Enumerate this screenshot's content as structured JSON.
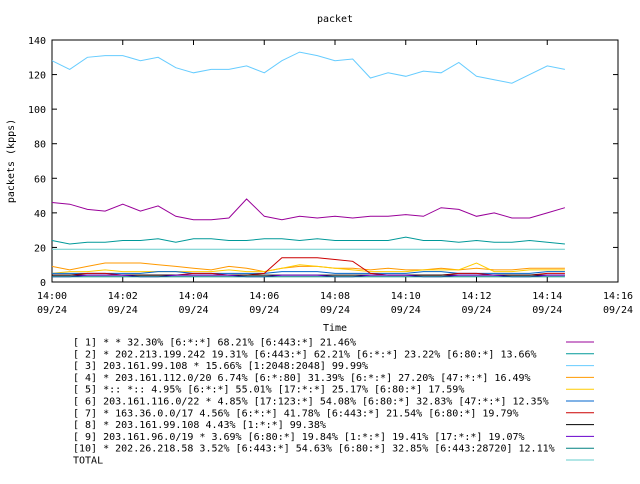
{
  "chart_data": {
    "type": "line",
    "title": "packet",
    "xlabel": "Time",
    "ylabel": "packets (kpps)",
    "ylim": [
      0,
      140
    ],
    "yticks": [
      0,
      20,
      40,
      60,
      80,
      100,
      120,
      140
    ],
    "xlim": [
      "14:00",
      "14:16"
    ],
    "xticks": [
      {
        "time": "14:00",
        "date": "09/24"
      },
      {
        "time": "14:02",
        "date": "09/24"
      },
      {
        "time": "14:04",
        "date": "09/24"
      },
      {
        "time": "14:06",
        "date": "09/24"
      },
      {
        "time": "14:08",
        "date": "09/24"
      },
      {
        "time": "14:10",
        "date": "09/24"
      },
      {
        "time": "14:12",
        "date": "09/24"
      },
      {
        "time": "14:14",
        "date": "09/24"
      },
      {
        "time": "14:16",
        "date": "09/24"
      }
    ],
    "grid": false,
    "legend_placement": "bottom",
    "x": [
      "14:00:00",
      "14:00:30",
      "14:01:00",
      "14:01:30",
      "14:02:00",
      "14:02:30",
      "14:03:00",
      "14:03:30",
      "14:04:00",
      "14:04:30",
      "14:05:00",
      "14:05:30",
      "14:06:00",
      "14:06:30",
      "14:07:00",
      "14:07:30",
      "14:08:00",
      "14:08:30",
      "14:09:00",
      "14:09:30",
      "14:10:00",
      "14:10:30",
      "14:11:00",
      "14:11:30",
      "14:12:00",
      "14:12:30",
      "14:13:00",
      "14:13:30",
      "14:14:00",
      "14:14:30"
    ],
    "series": [
      {
        "name": "[ 1] * * 32.30%  [6:*:*] 68.21% [6:443:*] 21.46%",
        "color": "#990099",
        "values": [
          46,
          45,
          42,
          41,
          45,
          41,
          44,
          38,
          36,
          36,
          37,
          48,
          38,
          36,
          38,
          37,
          38,
          37,
          38,
          38,
          39,
          38,
          43,
          42,
          38,
          40,
          37,
          37,
          40,
          43
        ]
      },
      {
        "name": "[ 2] * 202.213.199.242 19.31%  [6:443:*] 62.21% [6:*:*] 23.22% [6:80:*] 13.66%",
        "color": "#009999",
        "values": [
          24,
          22,
          23,
          23,
          24,
          24,
          25,
          23,
          25,
          25,
          24,
          24,
          25,
          25,
          24,
          25,
          24,
          24,
          24,
          24,
          26,
          24,
          24,
          23,
          24,
          23,
          23,
          24,
          23,
          22
        ]
      },
      {
        "name": "[ 3] 203.161.99.108 * 15.66%  [1:2048:2048] 99.99%",
        "color": "#66ccff",
        "values": [
          128,
          123,
          130,
          131,
          131,
          128,
          130,
          124,
          121,
          123,
          123,
          125,
          121,
          128,
          133,
          131,
          128,
          129,
          118,
          121,
          119,
          122,
          121,
          127,
          119,
          117,
          115,
          120,
          125,
          123
        ]
      },
      {
        "name": "[ 4] * 203.161.112.0/20 6.74%  [6:*:80] 31.39% [6:*:*] 27.20% [47:*:*] 16.49%",
        "color": "#ff9900",
        "values": [
          9,
          7,
          9,
          11,
          11,
          11,
          10,
          9,
          8,
          7,
          9,
          8,
          6,
          8,
          9,
          9,
          8,
          8,
          7,
          8,
          7,
          7,
          8,
          7,
          8,
          7,
          7,
          8,
          8,
          8
        ]
      },
      {
        "name": "[ 5] *:: *:: 4.95%  [6:*:*] 55.01% [17:*:*] 25.17% [6:80:*] 17.59%",
        "color": "#ffcc00",
        "values": [
          5,
          6,
          6,
          7,
          6,
          6,
          6,
          6,
          6,
          6,
          7,
          6,
          6,
          8,
          10,
          9,
          8,
          7,
          6,
          6,
          6,
          7,
          7,
          7,
          11,
          6,
          6,
          7,
          7,
          7
        ]
      },
      {
        "name": "[ 6] 203.161.116.0/22 * 4.85%  [17:123:*] 54.08% [6:80:*] 32.83% [47:*:*] 12.35%",
        "color": "#0066cc",
        "values": [
          5,
          5,
          5,
          5,
          5,
          5,
          6,
          6,
          5,
          5,
          5,
          5,
          5,
          6,
          6,
          6,
          5,
          5,
          5,
          5,
          5,
          6,
          6,
          5,
          5,
          5,
          5,
          5,
          6,
          6
        ]
      },
      {
        "name": "[ 7] * 163.36.0.0/17 4.56%  [6:*:*] 41.78% [6:443:*] 21.54% [6:80:*] 19.79%",
        "color": "#cc0000",
        "values": [
          4,
          4,
          5,
          5,
          4,
          4,
          4,
          4,
          5,
          5,
          4,
          4,
          5,
          14,
          14,
          14,
          13,
          12,
          5,
          4,
          4,
          4,
          4,
          5,
          5,
          4,
          4,
          4,
          5,
          5
        ]
      },
      {
        "name": "[ 8] * 203.161.99.108 4.43%  [1:*:*] 99.38%",
        "color": "#000000",
        "values": [
          4,
          4,
          4,
          4,
          4,
          4,
          4,
          4,
          4,
          4,
          4,
          4,
          4,
          4,
          4,
          4,
          4,
          4,
          4,
          4,
          4,
          4,
          4,
          4,
          4,
          4,
          4,
          4,
          4,
          4
        ]
      },
      {
        "name": "[ 9] 203.161.96.0/19 * 3.69%  [6:80:*] 19.84% [1:*:*] 19.41% [17:*:*] 19.07%",
        "color": "#6600cc",
        "values": [
          3,
          3,
          4,
          4,
          4,
          3,
          3,
          4,
          4,
          4,
          4,
          3,
          3,
          4,
          4,
          4,
          3,
          3,
          4,
          4,
          4,
          3,
          3,
          4,
          4,
          4,
          3,
          3,
          4,
          4
        ]
      },
      {
        "name": "[10] * 202.26.218.58 3.52%  [6:443:*] 54.63% [6:80:*] 32.85% [6:443:28720] 12.11%",
        "color": "#008080",
        "values": [
          3,
          3,
          3,
          3,
          3,
          3,
          3,
          3,
          3,
          3,
          3,
          3,
          3,
          3,
          3,
          3,
          3,
          3,
          3,
          3,
          3,
          3,
          3,
          3,
          3,
          3,
          3,
          3,
          3,
          3
        ]
      },
      {
        "name": "TOTAL",
        "color": "#66cccc",
        "values": [
          19,
          19,
          19,
          19,
          19,
          19,
          19,
          19,
          19,
          19,
          19,
          19,
          19,
          19,
          19,
          19,
          19,
          19,
          19,
          19,
          19,
          19,
          19,
          19,
          19,
          19,
          19,
          19,
          19,
          19
        ]
      }
    ]
  }
}
